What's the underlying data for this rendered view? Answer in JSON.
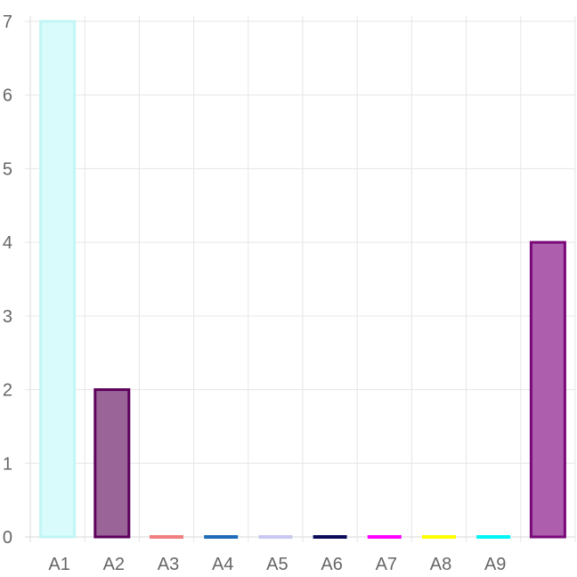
{
  "chart_data": {
    "type": "bar",
    "categories": [
      "A1",
      "A2",
      "A3",
      "A4",
      "A5",
      "A6",
      "A7",
      "A8",
      "A9",
      ""
    ],
    "values": [
      7,
      2,
      0,
      0,
      0,
      0,
      0,
      0,
      0,
      4
    ],
    "bar_fill_colors": [
      "#d9fbfb",
      "#9b6499",
      "#f08080",
      "#1e6bb8",
      "#c8c8f0",
      "#0b0b5a",
      "#ff00ff",
      "#ffff00",
      "#00f5f5",
      "#ad5fad"
    ],
    "bar_border_colors": [
      "#c2f5f5",
      "#5c005c",
      "#f08080",
      "#1e6bb8",
      "#c8c8f0",
      "#0b0b5a",
      "#ff00ff",
      "#ffff00",
      "#00f5f5",
      "#7a0a7a"
    ],
    "y_ticks": [
      0,
      1,
      2,
      3,
      4,
      5,
      6,
      7
    ],
    "ylim": [
      0,
      7
    ],
    "grid": true,
    "legend": "none"
  }
}
